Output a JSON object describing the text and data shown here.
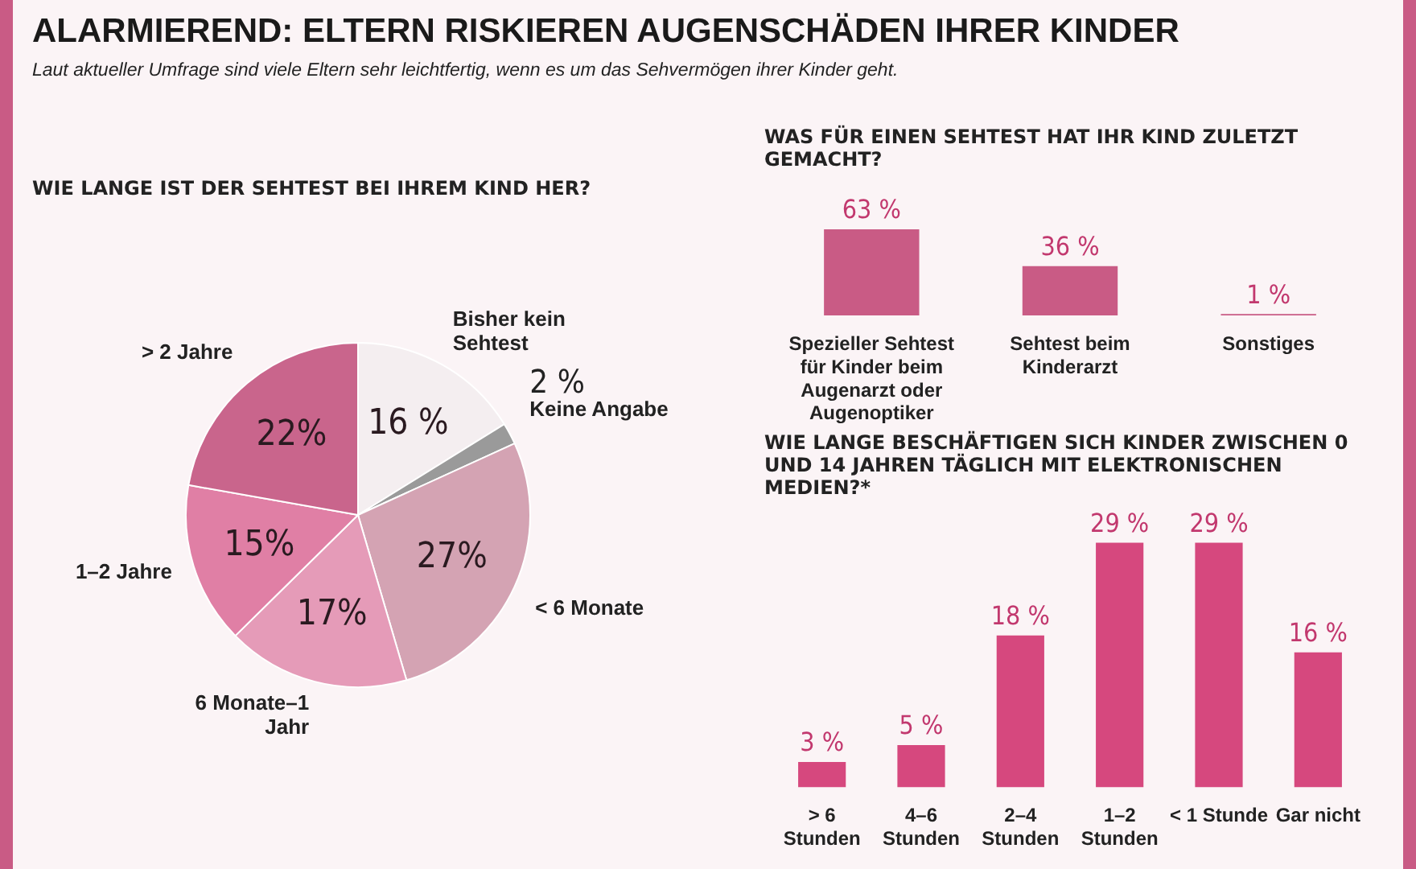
{
  "chart_data": [
    {
      "type": "other",
      "title": "ALARMIEREND: ELTERN RISKIEREN AUGENSCHÄDEN IHRER KINDER",
      "subtitle": "Laut aktueller Umfrage sind viele Eltern sehr leichtfertig, wenn es um das Sehvermögen ihrer Kinder geht."
    },
    {
      "type": "pie",
      "title": "WIE LANGE IST DER SEHTEST BEI IHREM KIND HER?",
      "categories": [
        "Bisher kein Sehtest",
        "Keine Angabe",
        "< 6 Monate",
        "6 Monate–1 Jahr",
        "1–2 Jahre",
        "> 2 Jahre"
      ],
      "values": [
        16,
        2,
        27,
        17,
        15,
        22
      ],
      "value_labels": [
        "16 %",
        "2 %",
        "27%",
        "17%",
        "15%",
        "22%"
      ],
      "colors": [
        "#f4eef0",
        "#9a9a9a",
        "#d4a3b3",
        "#e59bb8",
        "#e07fa5",
        "#c9658c"
      ],
      "legend": false
    },
    {
      "type": "bar",
      "title": "WAS FÜR EINEN SEHTEST HAT IHR KIND ZULETZT GEMACHT?",
      "categories": [
        "Spezieller Sehtest für Kinder beim Augenarzt oder Augenoptiker",
        "Sehtest beim Kinderarzt",
        "Sonstiges"
      ],
      "values": [
        63,
        36,
        1
      ],
      "value_labels": [
        "63 %",
        "36 %",
        "1 %"
      ],
      "color": "#c95b85",
      "legend": false
    },
    {
      "type": "bar",
      "title": "WIE LANGE BESCHÄFTIGEN SICH KINDER ZWISCHEN 0 UND 14 JAHREN TÄGLICH MIT ELEKTRONISCHEN MEDIEN?*",
      "categories": [
        "> 6 Stunden",
        "4–6 Stunden",
        "2–4 Stunden",
        "1–2 Stunden",
        "< 1 Stunde",
        "Gar nicht"
      ],
      "values": [
        3,
        5,
        18,
        29,
        29,
        16
      ],
      "value_labels": [
        "3 %",
        "5 %",
        "18 %",
        "29 %",
        "29 %",
        "16 %"
      ],
      "color": "#d6487e",
      "legend": false
    }
  ]
}
